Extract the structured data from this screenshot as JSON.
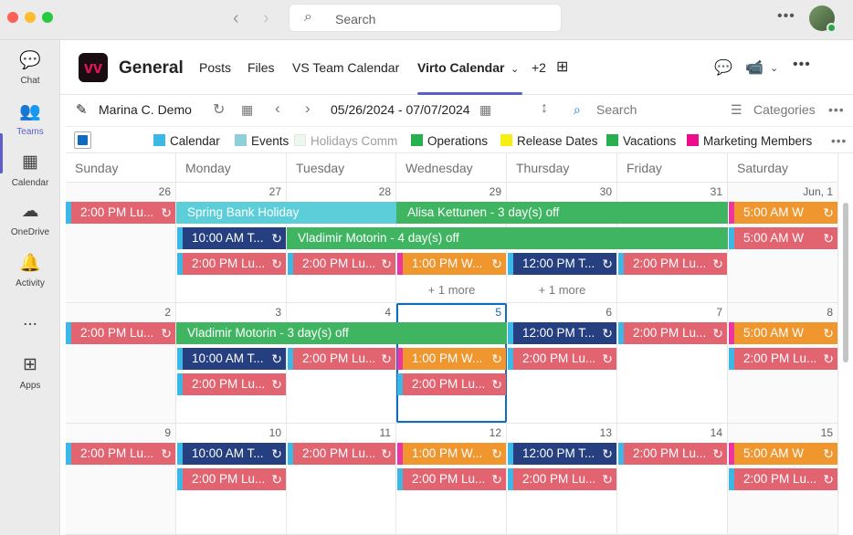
{
  "window": {
    "search_placeholder": "Search"
  },
  "rail": [
    {
      "label": "Chat",
      "icon": "chat-icon"
    },
    {
      "label": "Teams",
      "icon": "teams-icon"
    },
    {
      "label": "Calendar",
      "icon": "calendar-icon"
    },
    {
      "label": "OneDrive",
      "icon": "onedrive-icon"
    },
    {
      "label": "Activity",
      "icon": "bell-icon"
    },
    {
      "label": "...",
      "icon": "more-icon"
    },
    {
      "label": "Apps",
      "icon": "apps-icon"
    }
  ],
  "header": {
    "logo_text": "vv",
    "channel": "General",
    "tabs": [
      "Posts",
      "Files",
      "VS Team Calendar",
      "Virto Calendar"
    ],
    "more_tabs": "+2"
  },
  "toolbar": {
    "user": "Marina C. Demo",
    "date_range": "05/26/2024 - 07/07/2024",
    "search": "Search",
    "categories": "Categories"
  },
  "legend": [
    {
      "label": "Calendar",
      "color": "#3cb8e6"
    },
    {
      "label": "Events",
      "color": "#8fcfd9"
    },
    {
      "label": "Holidays Comm",
      "color": "#eef6f0"
    },
    {
      "label": "Operations",
      "color": "#27b04f"
    },
    {
      "label": "Release Dates",
      "color": "#f7ef12"
    },
    {
      "label": "Vacations",
      "color": "#27b04f"
    },
    {
      "label": "Marketing Members",
      "color": "#ec0c8c"
    }
  ],
  "days": [
    "Sunday",
    "Monday",
    "Tuesday",
    "Wednesday",
    "Thursday",
    "Friday",
    "Saturday"
  ],
  "weeks": [
    [
      "26",
      "27",
      "28",
      "29",
      "30",
      "31",
      "Jun, 1"
    ],
    [
      "2",
      "3",
      "4",
      "5",
      "6",
      "7",
      "8"
    ],
    [
      "9",
      "10",
      "11",
      "12",
      "13",
      "14",
      "15"
    ]
  ],
  "ev": {
    "lunch": "2:00 PM   Lu...",
    "team10": "10:00 AM   T...",
    "team12": "12:00 PM   T...",
    "web1": "1:00 PM   W...",
    "web5": "5:00 AM   W",
    "holiday": "Spring Bank Holiday",
    "alisa": "Alisa Kettunen - 3 day(s) off",
    "vladimir4": "Vladimir Motorin - 4 day(s) off",
    "vladimir3": "Vladimir Motorin - 3 day(s) off",
    "more": "+ 1 more"
  }
}
